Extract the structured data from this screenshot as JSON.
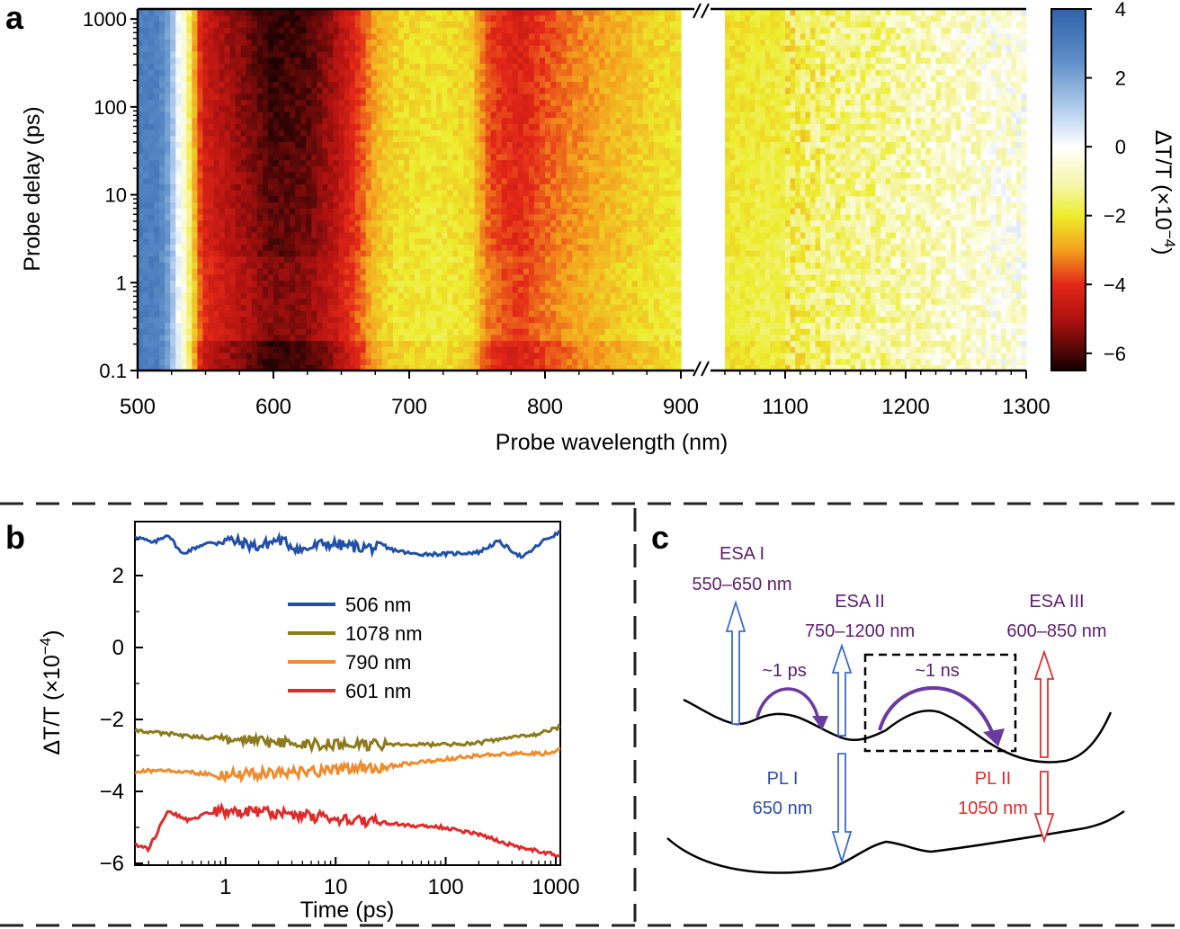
{
  "panels": {
    "a": "a",
    "b": "b",
    "c": "c"
  },
  "colors": {
    "axis": "#000000",
    "dashed_divider": "#222222",
    "blue": "#2250a8",
    "olive": "#8c7a1c",
    "orange": "#f08a2c",
    "red": "#e02a2a",
    "purple": "#5e1e6e",
    "purple_arrow": "#6a3aa0",
    "pl1": "#2a4cb0",
    "pl2": "#e02a2a",
    "esa_open_blue": "#3a6ad0",
    "esa_open_red": "#e03030"
  },
  "chart_data": [
    {
      "id": "a",
      "type": "heatmap",
      "xlabel": "Probe wavelength (nm)",
      "ylabel": "Probe delay (ps)",
      "x_ticks_left": [
        "500",
        "600",
        "700",
        "800",
        "900"
      ],
      "x_ticks_right": [
        "1100",
        "1200",
        "1300"
      ],
      "x_break": "900–1050",
      "xlim": [
        500,
        1300
      ],
      "y_scale": "log",
      "y_ticks": [
        "0.1",
        "1",
        "10",
        "100",
        "1000"
      ],
      "ylim": [
        0.1,
        1300
      ],
      "colorbar": {
        "label": "ΔT/T (×10",
        "label_exp": "−4",
        "label_close": ")",
        "ticks": [
          "4",
          "2",
          "0",
          "−2",
          "−4",
          "−6"
        ],
        "range": [
          -6.5,
          4
        ],
        "stops": [
          {
            "v": 4,
            "c": "#2f62ab"
          },
          {
            "v": 2.5,
            "c": "#5e8ec8"
          },
          {
            "v": 1.0,
            "c": "#b8d2ee"
          },
          {
            "v": 0,
            "c": "#ffffff"
          },
          {
            "v": -1.2,
            "c": "#f5f5a0"
          },
          {
            "v": -2,
            "c": "#eded2c"
          },
          {
            "v": -3,
            "c": "#f4a11e"
          },
          {
            "v": -4,
            "c": "#e32718"
          },
          {
            "v": -5,
            "c": "#b01210"
          },
          {
            "v": -6,
            "c": "#480606"
          },
          {
            "v": -6.5,
            "c": "#140000"
          }
        ]
      },
      "spectral_profile": [
        {
          "nm": 500,
          "v": 3.0
        },
        {
          "nm": 515,
          "v": 3.0
        },
        {
          "nm": 523,
          "v": 2.0
        },
        {
          "nm": 530,
          "v": 0.2
        },
        {
          "nm": 537,
          "v": -1.2
        },
        {
          "nm": 543,
          "v": -3.0
        },
        {
          "nm": 548,
          "v": -4.2
        },
        {
          "nm": 560,
          "v": -4.6
        },
        {
          "nm": 580,
          "v": -5.2
        },
        {
          "nm": 600,
          "v": -5.8
        },
        {
          "nm": 625,
          "v": -5.6
        },
        {
          "nm": 645,
          "v": -4.8
        },
        {
          "nm": 660,
          "v": -3.9
        },
        {
          "nm": 675,
          "v": -2.7
        },
        {
          "nm": 690,
          "v": -2.2
        },
        {
          "nm": 720,
          "v": -2.0
        },
        {
          "nm": 745,
          "v": -2.2
        },
        {
          "nm": 760,
          "v": -3.6
        },
        {
          "nm": 780,
          "v": -4.0
        },
        {
          "nm": 800,
          "v": -3.5
        },
        {
          "nm": 820,
          "v": -3.1
        },
        {
          "nm": 850,
          "v": -2.6
        },
        {
          "nm": 880,
          "v": -2.2
        },
        {
          "nm": 900,
          "v": -2.0
        },
        {
          "nm": 1050,
          "v": -2.0
        },
        {
          "nm": 1100,
          "v": -1.8
        },
        {
          "nm": 1150,
          "v": -1.3
        },
        {
          "nm": 1200,
          "v": -1.0
        },
        {
          "nm": 1250,
          "v": -0.6
        },
        {
          "nm": 1300,
          "v": -0.3
        }
      ]
    },
    {
      "id": "b",
      "type": "line",
      "xlabel": "Time (ps)",
      "ylabel": "ΔT/T (×10",
      "ylabel_exp": "−4",
      "ylabel_close": ")",
      "x_scale": "log",
      "xlim": [
        0.15,
        1100
      ],
      "ylim": [
        -6.05,
        3.5
      ],
      "x_ticks": [
        "1",
        "10",
        "100",
        "1000"
      ],
      "y_ticks": [
        "2",
        "0",
        "−2",
        "−4",
        "−6"
      ],
      "series": [
        {
          "name": "506 nm",
          "color": "#2250a8",
          "points": [
            [
              0.15,
              3.1
            ],
            [
              0.22,
              2.9
            ],
            [
              0.3,
              3.15
            ],
            [
              0.4,
              2.6
            ],
            [
              0.6,
              2.85
            ],
            [
              1,
              3.0
            ],
            [
              2,
              2.8
            ],
            [
              3,
              3.0
            ],
            [
              5,
              2.7
            ],
            [
              8,
              2.9
            ],
            [
              15,
              2.8
            ],
            [
              30,
              2.75
            ],
            [
              50,
              2.6
            ],
            [
              100,
              2.6
            ],
            [
              200,
              2.65
            ],
            [
              300,
              2.95
            ],
            [
              500,
              2.5
            ],
            [
              800,
              3.0
            ],
            [
              1100,
              3.2
            ]
          ]
        },
        {
          "name": "1078 nm",
          "color": "#8c7a1c",
          "points": [
            [
              0.15,
              -2.3
            ],
            [
              0.3,
              -2.4
            ],
            [
              0.6,
              -2.5
            ],
            [
              1,
              -2.55
            ],
            [
              3,
              -2.65
            ],
            [
              10,
              -2.7
            ],
            [
              30,
              -2.7
            ],
            [
              100,
              -2.7
            ],
            [
              200,
              -2.65
            ],
            [
              400,
              -2.5
            ],
            [
              700,
              -2.4
            ],
            [
              1100,
              -2.2
            ]
          ]
        },
        {
          "name": "790 nm",
          "color": "#f08a2c",
          "points": [
            [
              0.15,
              -3.45
            ],
            [
              0.3,
              -3.4
            ],
            [
              0.6,
              -3.5
            ],
            [
              1,
              -3.55
            ],
            [
              3,
              -3.5
            ],
            [
              10,
              -3.4
            ],
            [
              30,
              -3.3
            ],
            [
              100,
              -3.1
            ],
            [
              200,
              -3.0
            ],
            [
              400,
              -2.95
            ],
            [
              800,
              -2.95
            ],
            [
              1100,
              -2.85
            ]
          ]
        },
        {
          "name": "601 nm",
          "color": "#e02a2a",
          "points": [
            [
              0.15,
              -5.5
            ],
            [
              0.2,
              -5.6
            ],
            [
              0.3,
              -4.55
            ],
            [
              0.45,
              -4.8
            ],
            [
              0.7,
              -4.6
            ],
            [
              1,
              -4.55
            ],
            [
              3,
              -4.6
            ],
            [
              10,
              -4.75
            ],
            [
              30,
              -4.9
            ],
            [
              100,
              -5.0
            ],
            [
              200,
              -5.2
            ],
            [
              400,
              -5.5
            ],
            [
              800,
              -5.7
            ],
            [
              1100,
              -5.8
            ]
          ]
        }
      ]
    }
  ],
  "diagram_c": {
    "esa1_title": "ESA I",
    "esa1_range": "550–650 nm",
    "esa2_title": "ESA II",
    "esa2_range": "750–1200 nm",
    "esa3_title": "ESA III",
    "esa3_range": "600–850 nm",
    "t1": "~1 ps",
    "t2": "~1 ns",
    "pl1_title": "PL I",
    "pl1_value": "650 nm",
    "pl2_title": "PL II",
    "pl2_value": "1050 nm"
  }
}
